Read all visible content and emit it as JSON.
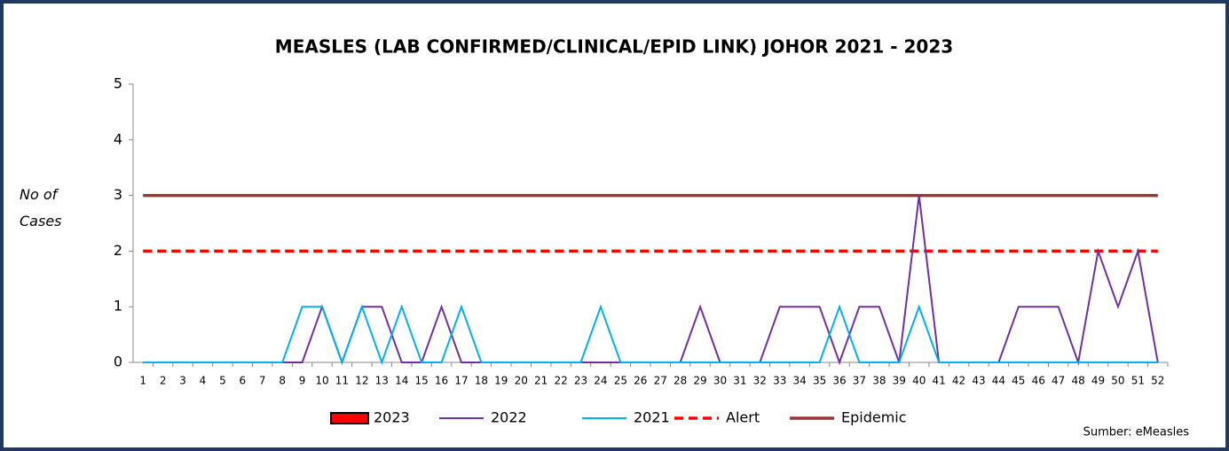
{
  "chart_data": {
    "type": "line",
    "title": "MEASLES (LAB CONFIRMED/CLINICAL/EPID LINK) JOHOR 2021 - 2023",
    "y_label": "No of Cases",
    "source": "Sumber: eMeasles",
    "categories": [
      "1",
      "2",
      "3",
      "4",
      "5",
      "6",
      "7",
      "8",
      "9",
      "10",
      "11",
      "12",
      "13",
      "14",
      "15",
      "16",
      "17",
      "18",
      "19",
      "20",
      "21",
      "22",
      "23",
      "24",
      "25",
      "26",
      "27",
      "28",
      "29",
      "30",
      "31",
      "32",
      "33",
      "34",
      "35",
      "36",
      "37",
      "38",
      "39",
      "40",
      "41",
      "42",
      "43",
      "44",
      "45",
      "46",
      "47",
      "48",
      "49",
      "50",
      "51",
      "52"
    ],
    "ylim": [
      0,
      5
    ],
    "yticks": [
      0,
      1,
      2,
      3,
      4,
      5
    ],
    "grid": false,
    "series": [
      {
        "name": "2023",
        "color": "#ff0000",
        "legend_mark": "box",
        "values": [
          null,
          null,
          null,
          null,
          null,
          null,
          null,
          null,
          null,
          null,
          null,
          null,
          null,
          null,
          null,
          null,
          null,
          null,
          null,
          null,
          null,
          null,
          null,
          null,
          null,
          null,
          null,
          null,
          null,
          null,
          null,
          null,
          null,
          null,
          null,
          null,
          null,
          null,
          null,
          null,
          null,
          null,
          null,
          null,
          null,
          null,
          null,
          null,
          null,
          null,
          null,
          null
        ]
      },
      {
        "name": "2022",
        "color": "#7030a0",
        "legend_mark": "line",
        "values": [
          0,
          0,
          0,
          0,
          0,
          0,
          0,
          0,
          0,
          1,
          0,
          1,
          1,
          0,
          0,
          1,
          0,
          0,
          0,
          0,
          0,
          0,
          0,
          0,
          0,
          0,
          0,
          0,
          1,
          0,
          0,
          0,
          1,
          1,
          1,
          0,
          1,
          1,
          0,
          3,
          0,
          0,
          0,
          0,
          1,
          1,
          1,
          0,
          2,
          1,
          2,
          0
        ]
      },
      {
        "name": "2021",
        "color": "#00b0f0",
        "legend_mark": "line",
        "values": [
          0,
          0,
          0,
          0,
          0,
          0,
          0,
          0,
          1,
          1,
          0,
          1,
          0,
          1,
          0,
          0,
          1,
          0,
          0,
          0,
          0,
          0,
          0,
          1,
          0,
          0,
          0,
          0,
          0,
          0,
          0,
          0,
          0,
          0,
          0,
          1,
          0,
          0,
          0,
          1,
          0,
          0,
          0,
          0,
          0,
          0,
          0,
          0,
          0,
          0,
          0,
          0
        ]
      },
      {
        "name": "Alert",
        "color": "#ff0000",
        "legend_mark": "dashed",
        "values": [
          2,
          2,
          2,
          2,
          2,
          2,
          2,
          2,
          2,
          2,
          2,
          2,
          2,
          2,
          2,
          2,
          2,
          2,
          2,
          2,
          2,
          2,
          2,
          2,
          2,
          2,
          2,
          2,
          2,
          2,
          2,
          2,
          2,
          2,
          2,
          2,
          2,
          2,
          2,
          2,
          2,
          2,
          2,
          2,
          2,
          2,
          2,
          2,
          2,
          2,
          2,
          2
        ]
      },
      {
        "name": "Epidemic",
        "color": "#953735",
        "legend_mark": "thick",
        "values": [
          3,
          3,
          3,
          3,
          3,
          3,
          3,
          3,
          3,
          3,
          3,
          3,
          3,
          3,
          3,
          3,
          3,
          3,
          3,
          3,
          3,
          3,
          3,
          3,
          3,
          3,
          3,
          3,
          3,
          3,
          3,
          3,
          3,
          3,
          3,
          3,
          3,
          3,
          3,
          3,
          3,
          3,
          3,
          3,
          3,
          3,
          3,
          3,
          3,
          3,
          3,
          3
        ]
      }
    ]
  }
}
